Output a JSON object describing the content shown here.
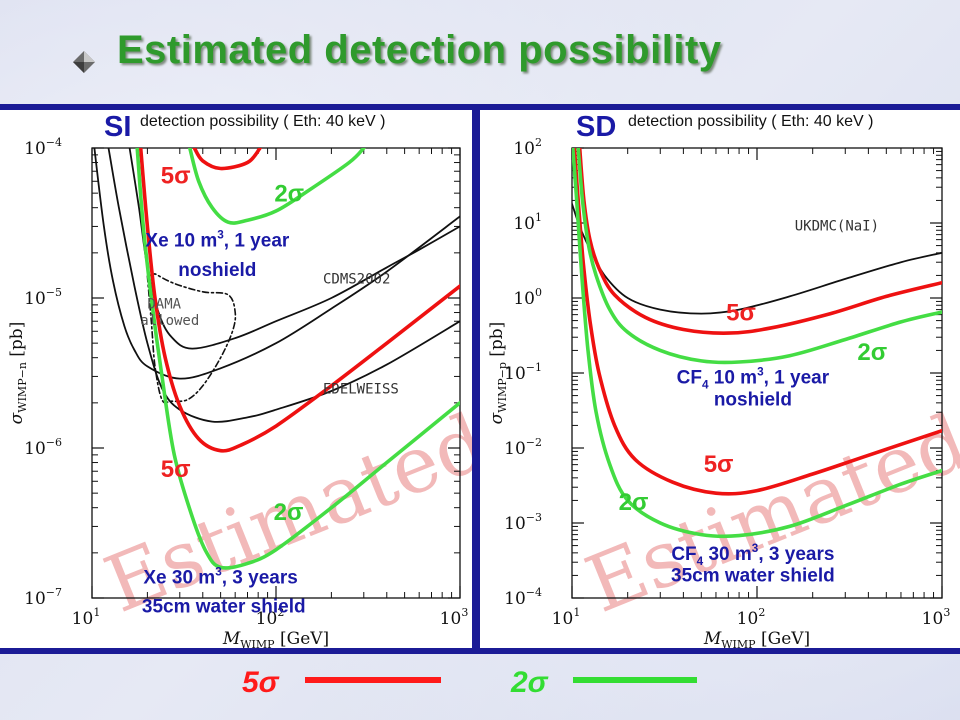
{
  "slide": {
    "title": "Estimated detection possibility",
    "title_color": "#2f9a2c",
    "bullet_icon": "diamond-bullet-icon"
  },
  "legend": [
    {
      "label": "5σ",
      "color": "#ff1a1a"
    },
    {
      "label": "2σ",
      "color": "#33dd33"
    }
  ],
  "chart_data": [
    {
      "type": "line",
      "id": "SI",
      "panel_label": "SI",
      "title": "detection possibility ( Eth: 40 keV )",
      "xlabel": "M",
      "xlabel_sub": "WIMP",
      "xlabel_unit": "[GeV]",
      "ylabel": "σ",
      "ylabel_sub": "WIMP−n",
      "ylabel_unit": "[pb]",
      "x_scale": "log",
      "y_scale": "log",
      "xlim": [
        10,
        1000
      ],
      "ylim": [
        1e-07,
        0.0001
      ],
      "x_ticks": [
        {
          "v": 10,
          "b": "10",
          "e": "1"
        },
        {
          "v": 100,
          "b": "10",
          "e": "2"
        },
        {
          "v": 1000,
          "b": "10",
          "e": "3"
        }
      ],
      "y_ticks": [
        {
          "v": 0.0001,
          "b": "10",
          "e": "−4"
        },
        {
          "v": 1e-05,
          "b": "10",
          "e": "−5"
        },
        {
          "v": 1e-06,
          "b": "10",
          "e": "−6"
        },
        {
          "v": 1e-07,
          "b": "10",
          "e": "−7"
        }
      ],
      "watermark": "Estimated",
      "series": [
        {
          "name": "CDMS2002",
          "color": "#111111",
          "width": 1.8,
          "dash": "",
          "points": [
            [
              10.3,
              0.0001
            ],
            [
              11.6,
              3e-05
            ],
            [
              13,
              1.3e-05
            ],
            [
              15,
              6.5e-06
            ],
            [
              17,
              4.5e-06
            ],
            [
              20,
              3.5e-06
            ],
            [
              30,
              2.9e-06
            ],
            [
              50,
              3.4e-06
            ],
            [
              100,
              5e-06
            ],
            [
              200,
              8.5e-06
            ],
            [
              400,
              1.5e-05
            ],
            [
              1000,
              3.5e-05
            ]
          ]
        },
        {
          "name": "EDELWEISS",
          "color": "#111111",
          "width": 1.8,
          "dash": "",
          "points": [
            [
              12.3,
              0.0001
            ],
            [
              14,
              4e-05
            ],
            [
              17,
              1.2e-05
            ],
            [
              20,
              5e-06
            ],
            [
              24,
              2.5e-06
            ],
            [
              30,
              1.8e-06
            ],
            [
              45,
              1.5e-06
            ],
            [
              70,
              1.6e-06
            ],
            [
              100,
              1.8e-06
            ],
            [
              200,
              2.4e-06
            ],
            [
              400,
              3.6e-06
            ],
            [
              1000,
              7e-06
            ]
          ]
        },
        {
          "name": "",
          "color": "#111111",
          "width": 1.8,
          "dash": "",
          "points": [
            [
              16,
              0.0001
            ],
            [
              18,
              4e-05
            ],
            [
              20,
              1.6e-05
            ],
            [
              23,
              8e-06
            ],
            [
              27,
              5.5e-06
            ],
            [
              35,
              4.6e-06
            ],
            [
              60,
              5.4e-06
            ],
            [
              100,
              7e-06
            ],
            [
              200,
              1e-05
            ],
            [
              400,
              1.6e-05
            ],
            [
              600,
              2.1e-05
            ],
            [
              1000,
              3e-05
            ]
          ]
        },
        {
          "name": "DAMA allowed",
          "color": "#111111",
          "width": 1.6,
          "dash": "6,3,2,3",
          "closed": true,
          "points": [
            [
              20,
              1.4e-05
            ],
            [
              21,
              7e-06
            ],
            [
              22,
              3.5e-06
            ],
            [
              24,
              2.1e-06
            ],
            [
              27,
              2.05e-06
            ],
            [
              33,
              2.1e-06
            ],
            [
              40,
              2.6e-06
            ],
            [
              50,
              4e-06
            ],
            [
              58,
              6e-06
            ],
            [
              60,
              8e-06
            ],
            [
              55,
              1.05e-05
            ],
            [
              40,
              1.1e-05
            ],
            [
              28,
              1.25e-05
            ],
            [
              22,
              1.45e-05
            ]
          ]
        },
        {
          "name": "Xe 10 m3, 1 year noshield 5σ",
          "color": "#ee1111",
          "width": 3.6,
          "dash": "",
          "points": [
            [
              36,
              0.0001
            ],
            [
              40,
              8.2e-05
            ],
            [
              50,
              7.3e-05
            ],
            [
              70,
              8e-05
            ],
            [
              82,
              0.0001
            ]
          ]
        },
        {
          "name": "Xe 10 m3, 1 year noshield 2σ",
          "color": "#44dd44",
          "width": 3.6,
          "dash": "",
          "points": [
            [
              34,
              0.0001
            ],
            [
              38,
              6e-05
            ],
            [
              45,
              4e-05
            ],
            [
              55,
              3.2e-05
            ],
            [
              70,
              3.3e-05
            ],
            [
              100,
              3.8e-05
            ],
            [
              150,
              5.2e-05
            ],
            [
              250,
              8e-05
            ],
            [
              300,
              0.0001
            ]
          ]
        },
        {
          "name": "Xe 30 m3, 3 years 35cm water shield 5σ",
          "color": "#ee1111",
          "width": 3.6,
          "dash": "",
          "points": [
            [
              18.4,
              0.0001
            ],
            [
              20,
              3e-05
            ],
            [
              22,
              1e-05
            ],
            [
              25,
              4e-06
            ],
            [
              30,
              1.9e-06
            ],
            [
              38,
              1.15e-06
            ],
            [
              50,
              9.6e-07
            ],
            [
              65,
              1.05e-06
            ],
            [
              100,
              1.4e-06
            ],
            [
              200,
              2.6e-06
            ],
            [
              400,
              5e-06
            ],
            [
              1000,
              1.2e-05
            ]
          ]
        },
        {
          "name": "Xe 30 m3, 3 years 35cm water shield 2σ",
          "color": "#44dd44",
          "width": 3.6,
          "dash": "",
          "points": [
            [
              17.6,
              0.0001
            ],
            [
              19,
              3e-05
            ],
            [
              21,
              1e-05
            ],
            [
              24,
              3e-06
            ],
            [
              28,
              9e-07
            ],
            [
              35,
              3.5e-07
            ],
            [
              42,
              2e-07
            ],
            [
              50,
              1.6e-07
            ],
            [
              70,
              1.7e-07
            ],
            [
              100,
              2.1e-07
            ],
            [
              200,
              4e-07
            ],
            [
              400,
              8e-07
            ],
            [
              1000,
              2e-06
            ]
          ]
        }
      ],
      "annotations": [
        {
          "text": "CDMS2002",
          "x": 180,
          "y": 1.25e-05,
          "color": "#333333",
          "size": 14,
          "mono": true
        },
        {
          "text": "EDELWEISS",
          "x": 180,
          "y": 2.3e-06,
          "color": "#333333",
          "size": 14,
          "mono": true
        },
        {
          "text": "DAMA",
          "x": 20,
          "y": 8.5e-06,
          "color": "#555555",
          "size": 14,
          "mono": true
        },
        {
          "text": "allowed",
          "x": 18.3,
          "y": 6.6e-06,
          "color": "#555555",
          "size": 14,
          "mono": true
        }
      ],
      "labels": [
        {
          "text": "5σ",
          "x": 28.5,
          "y": 5.8e-05,
          "color": "#ee2222",
          "size": 24
        },
        {
          "text": "2σ",
          "x": 118,
          "y": 4.4e-05,
          "color": "#33cc33",
          "size": 24
        },
        {
          "text": "Xe 10 m",
          "sup": "3",
          "rest": ", 1 year",
          "x": 48,
          "y": 2.2e-05,
          "color": "#1a1aa6",
          "size": 19
        },
        {
          "text": "noshield",
          "x": 48,
          "y": 1.4e-05,
          "color": "#1a1aa6",
          "size": 19
        },
        {
          "text": "5σ",
          "x": 28.5,
          "y": 6.4e-07,
          "color": "#ee2222",
          "size": 24
        },
        {
          "text": "2σ",
          "x": 117,
          "y": 3.3e-07,
          "color": "#33cc33",
          "size": 24
        },
        {
          "text": "Xe 30 m",
          "sup": "3",
          "rest": ", 3 years",
          "x": 50,
          "y": 1.25e-07,
          "color": "#1a1aa6",
          "size": 19
        },
        {
          "text": "35cm water shield",
          "x": 52,
          "y": 8e-08,
          "color": "#1a1aa6",
          "size": 19
        }
      ]
    },
    {
      "type": "line",
      "id": "SD",
      "panel_label": "SD",
      "title": "detection possibility ( Eth: 40 keV )",
      "xlabel": "M",
      "xlabel_sub": "WIMP",
      "xlabel_unit": "[GeV]",
      "ylabel": "σ",
      "ylabel_sub": "WIMP−p",
      "ylabel_unit": "[pb]",
      "x_scale": "log",
      "y_scale": "log",
      "xlim": [
        10,
        1000
      ],
      "ylim": [
        0.0001,
        100
      ],
      "x_ticks": [
        {
          "v": 10,
          "b": "10",
          "e": "1"
        },
        {
          "v": 100,
          "b": "10",
          "e": "2"
        },
        {
          "v": 1000,
          "b": "10",
          "e": "3"
        }
      ],
      "y_ticks": [
        {
          "v": 100,
          "b": "10",
          "e": "2"
        },
        {
          "v": 10,
          "b": "10",
          "e": "1"
        },
        {
          "v": 1,
          "b": "10",
          "e": "0"
        },
        {
          "v": 0.1,
          "b": "10",
          "e": "−1"
        },
        {
          "v": 0.01,
          "b": "10",
          "e": "−2"
        },
        {
          "v": 0.001,
          "b": "10",
          "e": "−3"
        },
        {
          "v": 0.0001,
          "b": "10",
          "e": "−4"
        }
      ],
      "watermark": "Estimated",
      "series": [
        {
          "name": "UKDMC(NaI)",
          "color": "#111111",
          "width": 1.8,
          "dash": "",
          "points": [
            [
              10,
              18
            ],
            [
              11,
              9
            ],
            [
              12.5,
              4.5
            ],
            [
              15,
              2
            ],
            [
              20,
              1
            ],
            [
              30,
              0.7
            ],
            [
              50,
              0.62
            ],
            [
              80,
              0.7
            ],
            [
              150,
              1.05
            ],
            [
              300,
              1.8
            ],
            [
              600,
              3
            ],
            [
              1000,
              4
            ]
          ]
        },
        {
          "name": "CF4 10 m3, 1 year noshield 5σ",
          "color": "#ee1111",
          "width": 3.6,
          "dash": "",
          "points": [
            [
              11,
              100
            ],
            [
              11.6,
              20
            ],
            [
              12.5,
              6
            ],
            [
              14,
              2.5
            ],
            [
              17,
              1.1
            ],
            [
              25,
              0.55
            ],
            [
              40,
              0.38
            ],
            [
              70,
              0.34
            ],
            [
              120,
              0.4
            ],
            [
              250,
              0.62
            ],
            [
              500,
              1.05
            ],
            [
              1000,
              1.6
            ]
          ]
        },
        {
          "name": "CF4 10 m3, 1 year noshield 2σ",
          "color": "#44dd44",
          "width": 3.6,
          "dash": "",
          "points": [
            [
              10.8,
              100
            ],
            [
              11.4,
              20
            ],
            [
              12.3,
              5
            ],
            [
              13.5,
              2
            ],
            [
              16,
              0.7
            ],
            [
              20,
              0.35
            ],
            [
              30,
              0.2
            ],
            [
              50,
              0.145
            ],
            [
              80,
              0.14
            ],
            [
              150,
              0.17
            ],
            [
              300,
              0.28
            ],
            [
              600,
              0.48
            ],
            [
              1000,
              0.65
            ]
          ]
        },
        {
          "name": "CF4 30 m3, 3 years 35cm water shield 5σ",
          "color": "#ee1111",
          "width": 3.6,
          "dash": "",
          "points": [
            [
              10.3,
              100
            ],
            [
              10.8,
              20
            ],
            [
              11.5,
              3
            ],
            [
              12.5,
              0.5
            ],
            [
              14,
              0.1
            ],
            [
              17,
              0.02
            ],
            [
              22,
              0.007
            ],
            [
              35,
              0.0035
            ],
            [
              60,
              0.0025
            ],
            [
              100,
              0.0027
            ],
            [
              200,
              0.0045
            ],
            [
              400,
              0.008
            ],
            [
              1000,
              0.017
            ]
          ]
        },
        {
          "name": "CF4 30 m3, 3 years 35cm water shield 2σ",
          "color": "#44dd44",
          "width": 3.6,
          "dash": "",
          "points": [
            [
              10.1,
              100
            ],
            [
              10.6,
              20
            ],
            [
              11.3,
              2
            ],
            [
              12.2,
              0.2
            ],
            [
              13.5,
              0.03
            ],
            [
              16,
              0.006
            ],
            [
              20,
              0.002
            ],
            [
              30,
              0.001
            ],
            [
              50,
              0.0007
            ],
            [
              80,
              0.00068
            ],
            [
              150,
              0.0009
            ],
            [
              300,
              0.0017
            ],
            [
              600,
              0.0033
            ],
            [
              1000,
              0.005
            ]
          ]
        }
      ],
      "annotations": [
        {
          "text": "UKDMC(NaI)",
          "x": 160,
          "y": 8,
          "color": "#333333",
          "size": 14,
          "mono": true
        }
      ],
      "labels": [
        {
          "text": "5σ",
          "x": 82,
          "y": 0.5,
          "color": "#ee2222",
          "size": 24
        },
        {
          "text": "2σ",
          "x": 420,
          "y": 0.15,
          "color": "#33cc33",
          "size": 24
        },
        {
          "text": "CF",
          "sub": "4",
          "rest": " 10 m",
          "sup": "3",
          "rest2": ", 1 year",
          "x": 95,
          "y": 0.072,
          "color": "#1a1aa6",
          "size": 19
        },
        {
          "text": "noshield",
          "x": 95,
          "y": 0.037,
          "color": "#1a1aa6",
          "size": 19
        },
        {
          "text": "5σ",
          "x": 62,
          "y": 0.0048,
          "color": "#ee2222",
          "size": 24
        },
        {
          "text": "2σ",
          "x": 21.5,
          "y": 0.0015,
          "color": "#33cc33",
          "size": 24
        },
        {
          "text": "CF",
          "sub": "4",
          "rest": " 30 m",
          "sup": "3",
          "rest2": ", 3 years",
          "x": 95,
          "y": 0.00032,
          "color": "#1a1aa6",
          "size": 19
        },
        {
          "text": "35cm water shield",
          "x": 95,
          "y": 0.000165,
          "color": "#1a1aa6",
          "size": 19
        }
      ]
    }
  ]
}
